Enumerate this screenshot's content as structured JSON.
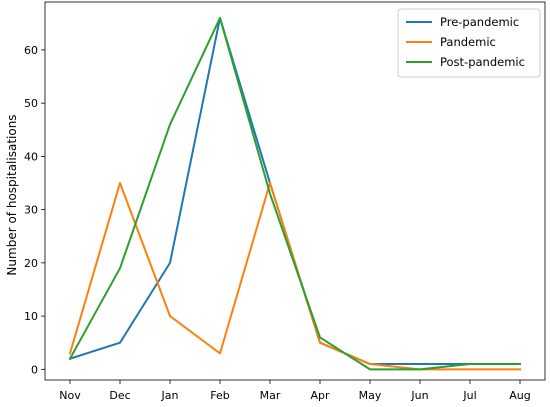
{
  "chart_data": {
    "type": "line",
    "categories": [
      "Nov",
      "Dec",
      "Jan",
      "Feb",
      "Mar",
      "Apr",
      "May",
      "Jun",
      "Jul",
      "Aug"
    ],
    "ylabel": "Number of hospitalisations",
    "xlabel": "",
    "title": "",
    "ylim": [
      -2,
      69
    ],
    "yticks": [
      0,
      10,
      20,
      30,
      40,
      50,
      60
    ],
    "grid": false,
    "legend_position": "top-right",
    "series": [
      {
        "name": "Pre-pandemic",
        "color": "#1f77b4",
        "values": [
          2,
          5,
          20,
          66,
          35,
          5,
          1,
          1,
          1,
          1
        ]
      },
      {
        "name": "Pandemic",
        "color": "#ff7f0e",
        "values": [
          3,
          35,
          10,
          3,
          35,
          5,
          1,
          0,
          0,
          0
        ]
      },
      {
        "name": "Post-pandemic",
        "color": "#2ca02c",
        "values": [
          2,
          19,
          46,
          66,
          33,
          6,
          0,
          0,
          1,
          1
        ]
      }
    ]
  }
}
